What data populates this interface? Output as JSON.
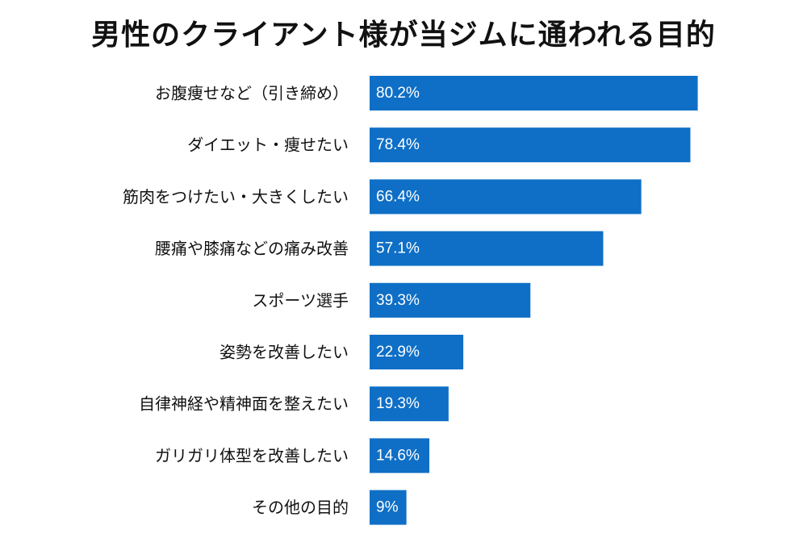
{
  "chart_data": {
    "type": "bar",
    "orientation": "horizontal",
    "title": "男性のクライアント様が当ジムに通われる目的",
    "categories": [
      "お腹痩せなど（引き締め）",
      "ダイエット・痩せたい",
      "筋肉をつけたい・大きくしたい",
      "腰痛や膝痛などの痛み改善",
      "スポーツ選手",
      "姿勢を改善したい",
      "自律神経や精神面を整えたい",
      "ガリガリ体型を改善したい",
      "その他の目的"
    ],
    "values": [
      80.2,
      78.4,
      66.4,
      57.1,
      39.3,
      22.9,
      19.3,
      14.6,
      9
    ],
    "value_labels": [
      "80.2%",
      "78.4%",
      "66.4%",
      "57.1%",
      "39.3%",
      "22.9%",
      "19.3%",
      "14.6%",
      "9%"
    ],
    "unit": "%",
    "xlim": [
      0,
      100
    ],
    "grid": false,
    "legend": "none",
    "bar_color": "#0f6fc6",
    "label_color": "#ffffff"
  }
}
